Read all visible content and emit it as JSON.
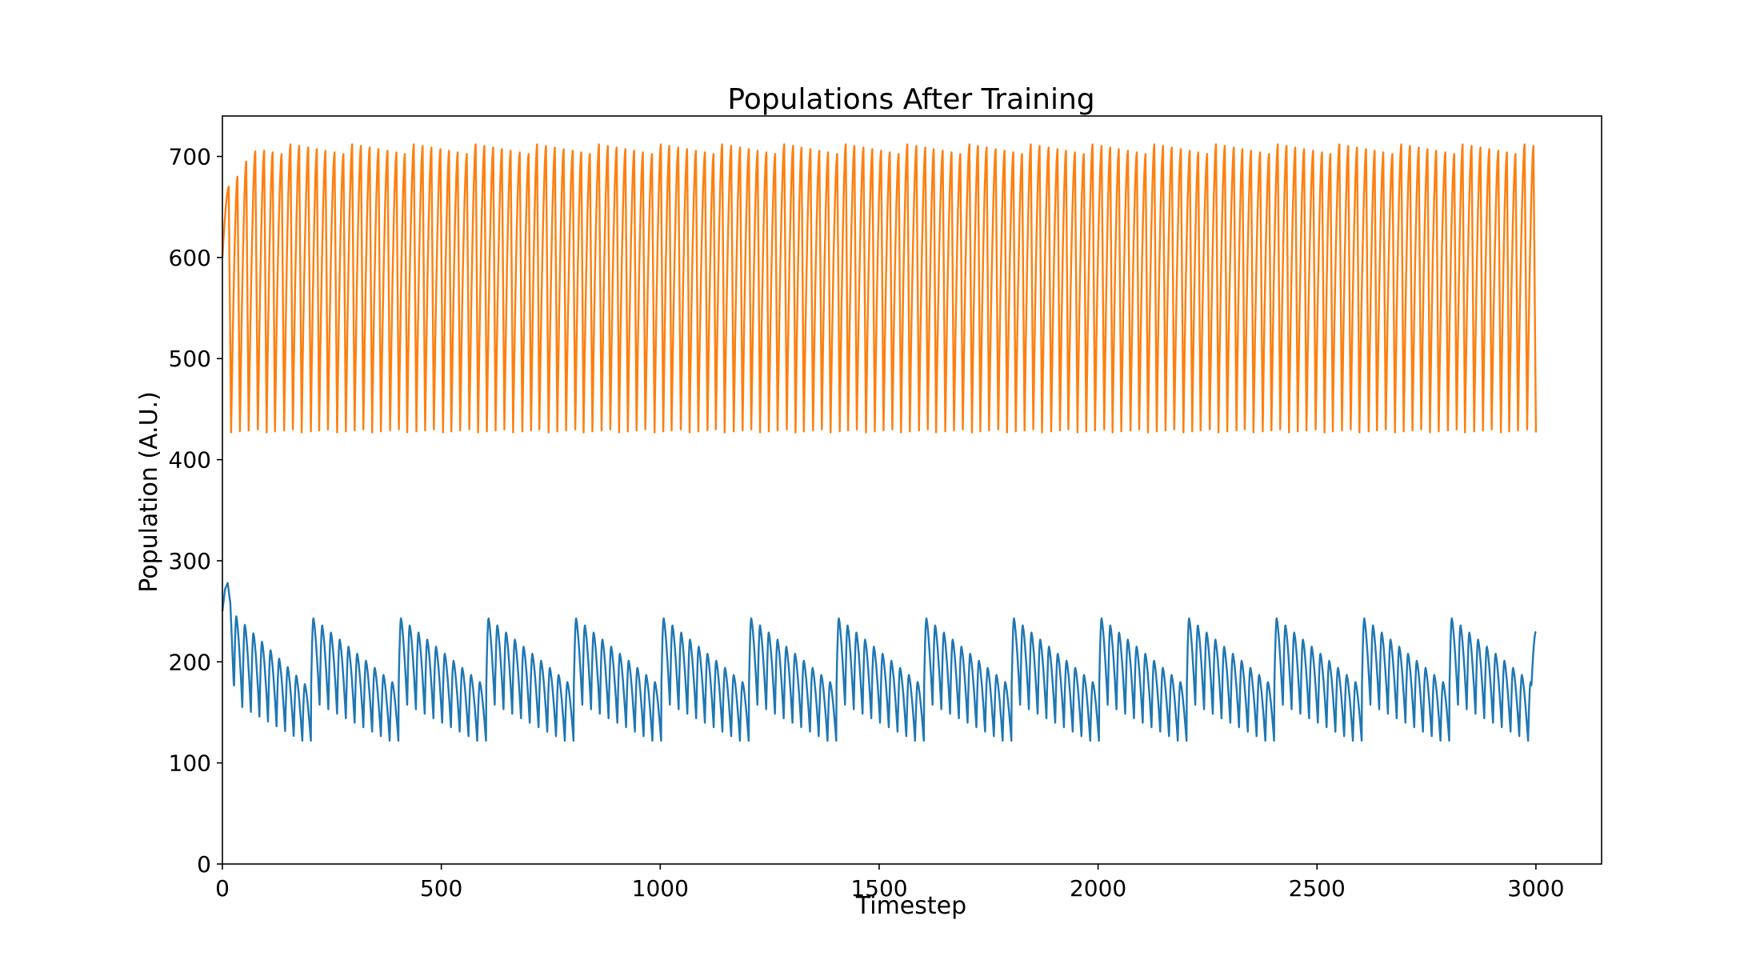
{
  "chart_data": {
    "type": "line",
    "title": "Populations After Training",
    "xlabel": "Timestep",
    "ylabel": "Population (A.U.)",
    "xlim": [
      0,
      3150
    ],
    "ylim": [
      0,
      740
    ],
    "xticks": [
      0,
      500,
      1000,
      1500,
      2000,
      2500,
      3000
    ],
    "yticks": [
      0,
      100,
      200,
      300,
      400,
      500,
      600,
      700
    ],
    "grid": false,
    "legend": "none",
    "series": [
      {
        "color": "#ff7f0e",
        "model": {
          "x_start": 0,
          "x_end": 3000,
          "mean_cycle_length": 20,
          "min": 427,
          "max": 712,
          "start_value": 600,
          "end_value": 596,
          "early_peaks": [
            670,
            680,
            695,
            705
          ]
        }
      },
      {
        "color": "#1f77b4",
        "model": {
          "x_start": 0,
          "x_end": 3000,
          "start_value": 250,
          "first_peak": 278,
          "super_period": 200,
          "peak_envelope_max": 243,
          "peak_envelope_min": 180,
          "trough_envelope_max": 162,
          "trough_envelope_min": 122,
          "sub_oscillations_per_period": 10,
          "end_value": 230
        }
      }
    ]
  }
}
